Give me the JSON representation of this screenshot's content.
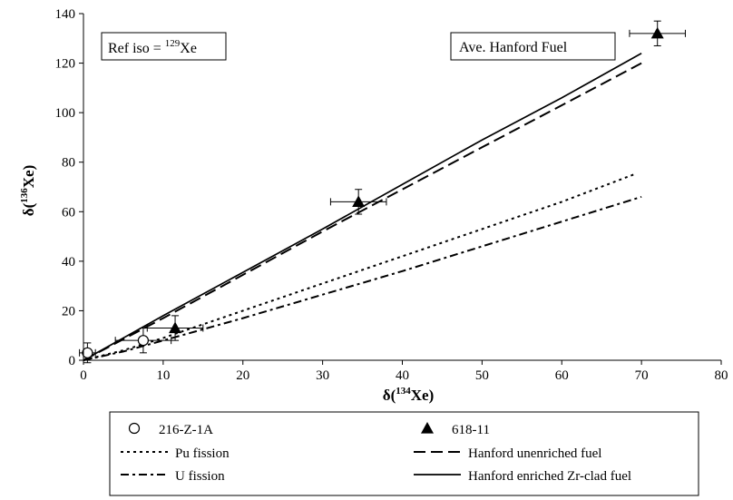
{
  "chart_data": {
    "type": "scatter",
    "xlim": [
      0,
      80
    ],
    "ylim": [
      0,
      140
    ],
    "xticks": [
      0,
      10,
      20,
      30,
      40,
      50,
      60,
      70,
      80
    ],
    "yticks": [
      0,
      20,
      40,
      60,
      80,
      100,
      120,
      140
    ],
    "xlabel": {
      "prefix": "δ(",
      "sup": "134",
      "main": "Xe)"
    },
    "ylabel": {
      "prefix": "δ(",
      "sup": "136",
      "main": "Xe)"
    },
    "grid": false,
    "annotations": {
      "ref_iso": {
        "prefix": "Ref iso = ",
        "sup": "129",
        "main": "Xe"
      },
      "fuel": "Ave. Hanford Fuel"
    },
    "series": [
      {
        "name": "216-Z-1A",
        "kind": "points",
        "marker": "open-circle",
        "points": [
          {
            "x": 0.5,
            "y": 3,
            "xerr": 1,
            "yerr": 4
          },
          {
            "x": 7.5,
            "y": 8,
            "xerr": 3.5,
            "yerr": 5
          }
        ]
      },
      {
        "name": "618-11",
        "kind": "points",
        "marker": "filled-triangle",
        "points": [
          {
            "x": 11.5,
            "y": 13,
            "xerr": 3.5,
            "yerr": 5
          },
          {
            "x": 34.5,
            "y": 64,
            "xerr": 3.5,
            "yerr": 5
          },
          {
            "x": 72,
            "y": 132,
            "xerr": 3.5,
            "yerr": 5
          }
        ]
      },
      {
        "name": "Pu fission",
        "kind": "line",
        "dash": "dotted",
        "points": [
          [
            0,
            0
          ],
          [
            5,
            4
          ],
          [
            10,
            9
          ],
          [
            20,
            20
          ],
          [
            30,
            31
          ],
          [
            40,
            42
          ],
          [
            50,
            53
          ],
          [
            60,
            64
          ],
          [
            69,
            75
          ]
        ]
      },
      {
        "name": "Hanford unenriched fuel",
        "kind": "line",
        "dash": "long-dash",
        "points": [
          [
            0,
            0
          ],
          [
            10,
            17
          ],
          [
            20,
            34.5
          ],
          [
            30,
            52
          ],
          [
            40,
            69
          ],
          [
            50,
            86
          ],
          [
            60,
            103
          ],
          [
            70,
            120
          ]
        ]
      },
      {
        "name": "U fission",
        "kind": "line",
        "dash": "dash-dot",
        "points": [
          [
            0,
            0
          ],
          [
            5,
            3.5
          ],
          [
            10,
            8
          ],
          [
            20,
            17
          ],
          [
            30,
            26.5
          ],
          [
            40,
            36
          ],
          [
            50,
            46
          ],
          [
            60,
            56
          ],
          [
            70,
            66
          ]
        ]
      },
      {
        "name": "Hanford enriched Zr-clad fuel",
        "kind": "line",
        "dash": "solid",
        "points": [
          [
            0,
            0
          ],
          [
            10,
            18
          ],
          [
            20,
            35.5
          ],
          [
            30,
            53
          ],
          [
            40,
            71
          ],
          [
            50,
            89
          ],
          [
            60,
            106
          ],
          [
            70,
            124
          ]
        ]
      }
    ],
    "legend": {
      "position": "bottom",
      "order": [
        "216-Z-1A",
        "618-11",
        "Pu fission",
        "Hanford unenriched fuel",
        "U fission",
        "Hanford enriched Zr-clad fuel"
      ]
    }
  }
}
